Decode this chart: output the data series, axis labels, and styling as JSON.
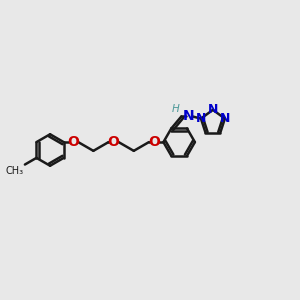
{
  "bg_color": "#e8e8e8",
  "bond_color": "#1a1a1a",
  "oxygen_color": "#cc0000",
  "nitrogen_color": "#0000cc",
  "h_color": "#4d9999",
  "figsize": [
    3.0,
    3.0
  ],
  "dpi": 100,
  "xlim": [
    0,
    12
  ],
  "ylim": [
    0,
    12
  ]
}
